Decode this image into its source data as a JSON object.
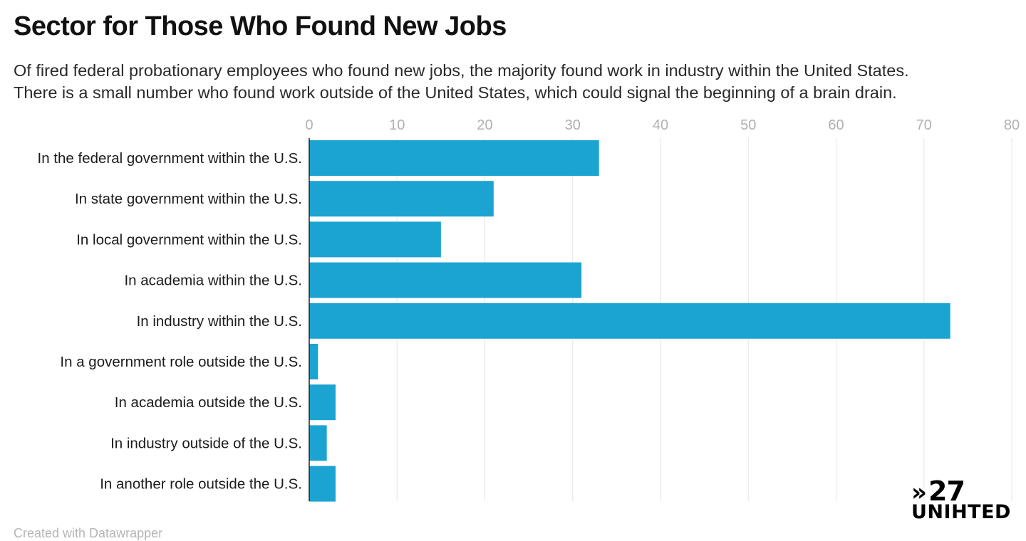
{
  "title": "Sector for Those Who Found New Jobs",
  "subtitle": [
    "Of fired federal probationary employees who found new jobs, the majority found work in industry within the United States.",
    "There is a small number who found work outside of the United States, which could signal the beginning of a brain drain."
  ],
  "logo": {
    "chevron": "»",
    "number": "27",
    "word": "UNIHTED"
  },
  "footer": "Created with Datawrapper",
  "colors": {
    "bar": "#1ba3d1",
    "grid": "#e6e6e6",
    "axis_line": "#222222"
  },
  "chart_data": {
    "type": "bar",
    "orientation": "horizontal",
    "categories": [
      "In the federal government within the U.S.",
      "In state government within the U.S.",
      "In local government within the U.S.",
      "In academia within the U.S.",
      "In industry within the U.S.",
      "In a government role outside the U.S.",
      "In academia outside the U.S.",
      "In industry outside of the U.S.",
      "In another role outside the U.S."
    ],
    "values": [
      33,
      21,
      15,
      31,
      73,
      1,
      3,
      2,
      3
    ],
    "xlim": [
      0,
      80
    ],
    "xticks": [
      0,
      10,
      20,
      30,
      40,
      50,
      60,
      70,
      80
    ],
    "axis_position": "top",
    "grid": true,
    "legend": "none"
  }
}
